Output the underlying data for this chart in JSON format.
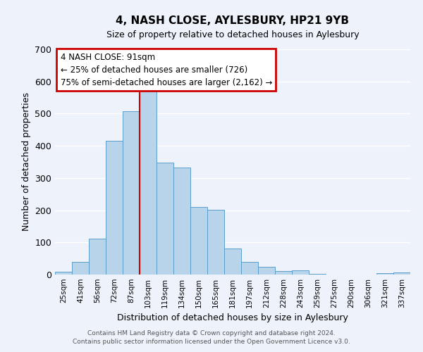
{
  "title": "4, NASH CLOSE, AYLESBURY, HP21 9YB",
  "subtitle": "Size of property relative to detached houses in Aylesbury",
  "xlabel": "Distribution of detached houses by size in Aylesbury",
  "ylabel": "Number of detached properties",
  "bar_color": "#b8d4ea",
  "bar_edge_color": "#5b9ec9",
  "background_color": "#eef2fb",
  "grid_color": "#ffffff",
  "categories": [
    "25sqm",
    "41sqm",
    "56sqm",
    "72sqm",
    "87sqm",
    "103sqm",
    "119sqm",
    "134sqm",
    "150sqm",
    "165sqm",
    "181sqm",
    "197sqm",
    "212sqm",
    "228sqm",
    "243sqm",
    "259sqm",
    "275sqm",
    "290sqm",
    "306sqm",
    "321sqm",
    "337sqm"
  ],
  "values": [
    8,
    40,
    112,
    415,
    508,
    575,
    347,
    332,
    211,
    202,
    80,
    40,
    25,
    11,
    13,
    3,
    0,
    0,
    1,
    5,
    7
  ],
  "ylim": [
    0,
    700
  ],
  "yticks": [
    0,
    100,
    200,
    300,
    400,
    500,
    600,
    700
  ],
  "annotation_line1": "4 NASH CLOSE: 91sqm",
  "annotation_line2": "← 25% of detached houses are smaller (726)",
  "annotation_line3": "75% of semi-detached houses are larger (2,162) →",
  "footer_line1": "Contains HM Land Registry data © Crown copyright and database right 2024.",
  "footer_line2": "Contains public sector information licensed under the Open Government Licence v3.0.",
  "annotation_box_color": "#cc0000",
  "marker_line_color": "#cc0000"
}
